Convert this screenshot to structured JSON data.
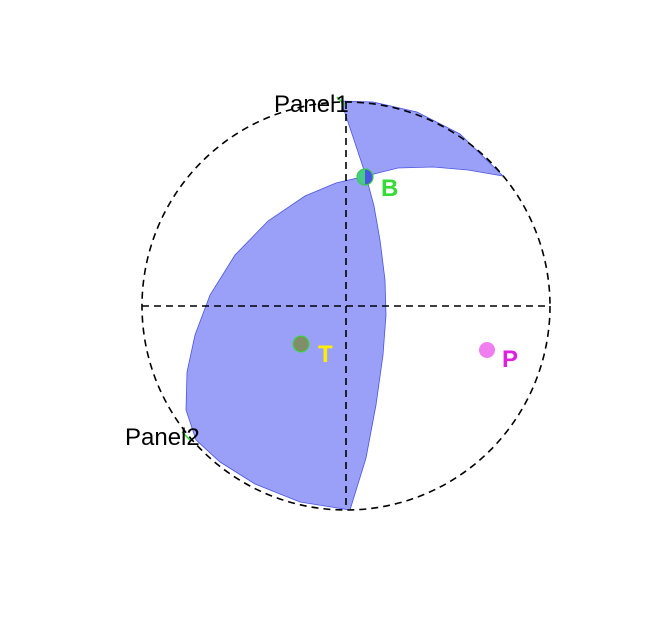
{
  "diagram": {
    "type": "focal-mechanism-beachball",
    "projection": "stereographic-net",
    "colors": {
      "compression_fill": "#9aa0f8",
      "compression_stroke": "#4a55e0",
      "outline": "#000000",
      "background": "#ffffff"
    },
    "outline_style": "dashed",
    "labels": {
      "panel1": "Panel1",
      "panel2": "Panel2",
      "b_axis": "B",
      "t_axis": "T",
      "p_axis": "P"
    },
    "axis_colors": {
      "b_axis": "#33dd33",
      "t_axis": "#ffee00",
      "p_axis": "#e020e0",
      "t_marker": "#7f8f6a",
      "p_marker": "#f07ef0",
      "b_marker": "#44cc88"
    }
  }
}
